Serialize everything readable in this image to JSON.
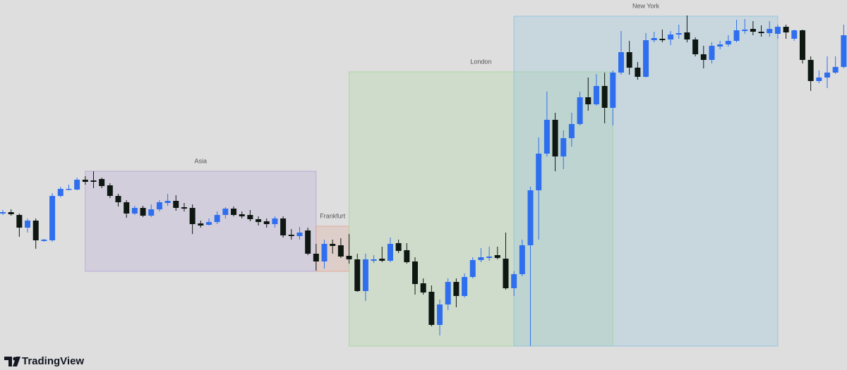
{
  "chart_data": {
    "type": "candlestick",
    "watermark": "TradingView",
    "up_color": "#2f6fef",
    "down_color": "#0e1712",
    "ylim": [
      0,
      525
    ],
    "open": [
      222,
      224,
      220,
      202,
      212,
      183,
      184,
      247,
      256,
      256,
      270,
      269,
      271,
      262,
      247,
      238,
      222,
      230,
      219,
      228,
      237,
      240,
      231,
      230,
      208,
      206,
      210,
      220,
      229,
      221,
      220,
      214,
      211,
      207,
      215,
      192,
      190,
      198,
      165,
      154,
      179,
      177,
      162,
      157,
      112,
      155,
      158,
      155,
      180,
      170,
      154,
      123,
      111,
      64,
      93,
      125,
      105,
      132,
      156,
      159,
      163,
      158,
      116,
      136,
      177,
      255,
      307,
      355,
      303,
      329,
      349,
      387,
      377,
      403,
      372,
      422,
      451,
      429,
      416,
      468,
      470,
      469,
      476,
      479,
      469,
      448,
      440,
      459,
      462,
      467,
      481,
      484,
      480,
      478,
      477,
      487,
      470,
      482,
      440,
      410,
      415,
      422,
      430
    ],
    "high": [
      227,
      228,
      222,
      215,
      215,
      186,
      251,
      260,
      263,
      273,
      275,
      282,
      273,
      265,
      250,
      241,
      233,
      233,
      235,
      241,
      250,
      248,
      237,
      235,
      212,
      215,
      225,
      231,
      232,
      225,
      227,
      218,
      215,
      218,
      218,
      200,
      203,
      202,
      179,
      185,
      185,
      187,
      193,
      165,
      165,
      163,
      175,
      188,
      185,
      180,
      160,
      130,
      120,
      100,
      130,
      130,
      137,
      160,
      173,
      175,
      175,
      195,
      140,
      185,
      260,
      330,
      395,
      365,
      340,
      365,
      395,
      415,
      420,
      422,
      425,
      481,
      467,
      437,
      478,
      480,
      483,
      481,
      490,
      503,
      472,
      460,
      465,
      467,
      475,
      497,
      498,
      495,
      489,
      495,
      490,
      490,
      483,
      483,
      445,
      425,
      445,
      445,
      490
    ],
    "low": [
      220,
      219,
      189,
      195,
      172,
      182,
      182,
      245,
      255,
      255,
      263,
      258,
      258,
      244,
      232,
      216,
      220,
      217,
      217,
      225,
      233,
      226,
      225,
      193,
      202,
      205,
      207,
      215,
      218,
      215,
      211,
      205,
      202,
      202,
      188,
      185,
      185,
      163,
      141,
      144,
      165,
      159,
      151,
      111,
      98,
      152,
      153,
      153,
      166,
      151,
      107,
      107,
      62,
      49,
      85,
      89,
      103,
      130,
      153,
      155,
      157,
      114,
      105,
      133,
      34,
      185,
      303,
      282,
      285,
      317,
      347,
      368,
      375,
      350,
      347,
      419,
      419,
      412,
      415,
      465,
      465,
      461,
      470,
      465,
      445,
      428,
      435,
      455,
      459,
      465,
      477,
      475,
      473,
      473,
      470,
      470,
      467,
      435,
      396,
      407,
      400,
      420,
      428
    ],
    "close": [
      224,
      221,
      202,
      212,
      184,
      185,
      247,
      257,
      257,
      270,
      267,
      267,
      261,
      247,
      238,
      222,
      230,
      219,
      228,
      238,
      240,
      230,
      229,
      207,
      205,
      210,
      220,
      229,
      220,
      218,
      214,
      210,
      207,
      215,
      191,
      190,
      195,
      165,
      154,
      179,
      176,
      161,
      157,
      112,
      157,
      157,
      155,
      179,
      169,
      153,
      122,
      110,
      64,
      93,
      125,
      105,
      132,
      156,
      160,
      161,
      159,
      116,
      136,
      177,
      255,
      307,
      355,
      303,
      329,
      349,
      387,
      377,
      403,
      372,
      422,
      451,
      429,
      416,
      468,
      471,
      468,
      476,
      478,
      469,
      448,
      440,
      460,
      462,
      467,
      482,
      483,
      480,
      478,
      484,
      487,
      479,
      482,
      440,
      410,
      415,
      422,
      430,
      475
    ],
    "sessions": [
      {
        "name": "Asia",
        "start": 10,
        "end": 38,
        "high": 282,
        "low": 140,
        "color": "#b7a6d6"
      },
      {
        "name": "Frankfurt",
        "start": 38,
        "end": 42,
        "high": 204,
        "low": 140,
        "color": "#e0a792"
      },
      {
        "name": "London",
        "start": 42,
        "end": 74,
        "high": 423,
        "low": 34,
        "color": "#a9d69a"
      },
      {
        "name": "New York",
        "start": 62,
        "end": 94,
        "high": 502,
        "low": 34,
        "color": "#8fc2dd"
      }
    ]
  }
}
